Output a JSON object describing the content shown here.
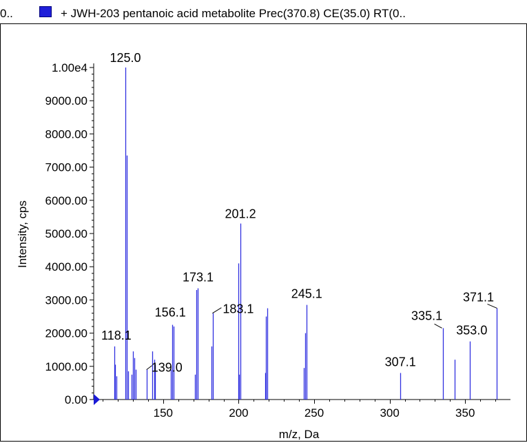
{
  "legend": {
    "prefix": "0..",
    "series_label": "+ JWH-203 pentanoic acid metabolite Prec(370.8) CE(35.0) RT(0..",
    "swatch_color": "#1f1fd9"
  },
  "chart_data": {
    "type": "bar",
    "title": "",
    "xlabel": "m/z, Da",
    "ylabel": "Intensity, cps",
    "xlim": [
      104,
      380
    ],
    "ylim": [
      0,
      10000
    ],
    "x_ticks": [
      150,
      200,
      250,
      300,
      350
    ],
    "x_tick_labels": [
      "150",
      "200",
      "250",
      "300",
      "350"
    ],
    "y_ticks": [
      0,
      1000,
      2000,
      3000,
      4000,
      5000,
      6000,
      7000,
      8000,
      9000,
      10000
    ],
    "y_tick_labels": [
      "0.00",
      "1000.00",
      "2000.00",
      "3000.00",
      "4000.00",
      "5000.00",
      "6000.00",
      "7000.00",
      "8000.00",
      "9000.00",
      "1.00e4"
    ],
    "grid": false,
    "bar_color": "#2f2fe0",
    "series": [
      {
        "name": "+ JWH-203 pentanoic acid metabolite Prec(370.8) CE(35.0) RT(0..",
        "x": [
          117.9,
          118.1,
          119.0,
          125.0,
          126.0,
          127.0,
          128.9,
          129.9,
          130.9,
          132.0,
          139.0,
          143.0,
          144.1,
          144.8,
          154.9,
          156.1,
          157.1,
          170.9,
          172.0,
          173.1,
          182.0,
          183.1,
          199.9,
          200.4,
          201.2,
          217.4,
          218.1,
          219.0,
          243.2,
          244.1,
          245.1,
          307.1,
          335.1,
          343.0,
          353.0,
          371.1
        ],
        "values": [
          1600,
          1050,
          700,
          10000,
          7350,
          850,
          750,
          1450,
          1250,
          900,
          900,
          1450,
          1200,
          1050,
          900,
          2250,
          2200,
          750,
          3300,
          3350,
          1600,
          2600,
          4100,
          750,
          5300,
          800,
          2500,
          2750,
          950,
          2000,
          2850,
          800,
          2150,
          1200,
          1750,
          2750
        ]
      }
    ],
    "annotations": [
      {
        "text": "125.0",
        "x": 125.0,
        "y": 10000
      },
      {
        "text": "201.2",
        "x": 201.2,
        "y": 5300
      },
      {
        "text": "173.1",
        "x": 173.1,
        "y": 3350
      },
      {
        "text": "183.1",
        "x": 183.1,
        "y": 2600
      },
      {
        "text": "245.1",
        "x": 245.1,
        "y": 2850
      },
      {
        "text": "156.1",
        "x": 156.1,
        "y": 2250
      },
      {
        "text": "118.1",
        "x": 118.1,
        "y": 1600
      },
      {
        "text": "139.0",
        "x": 139.0,
        "y": 900
      },
      {
        "text": "307.1",
        "x": 307.1,
        "y": 800
      },
      {
        "text": "335.1",
        "x": 335.1,
        "y": 2150
      },
      {
        "text": "353.0",
        "x": 353.0,
        "y": 1750
      },
      {
        "text": "371.1",
        "x": 371.1,
        "y": 2750
      }
    ]
  }
}
